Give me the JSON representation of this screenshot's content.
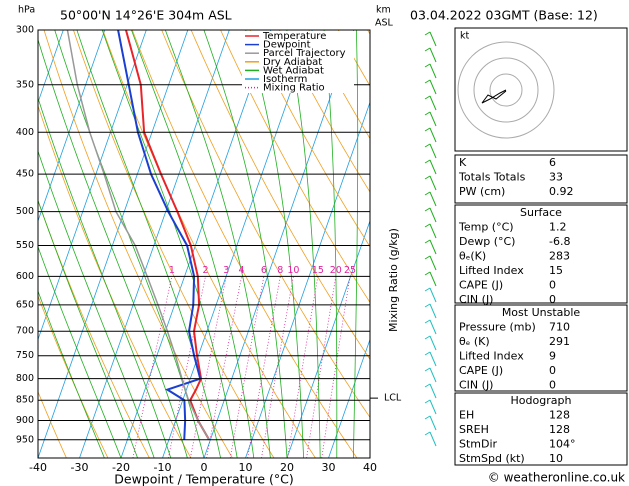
{
  "chart_data": {
    "type": "skewt",
    "title": "50°00'N 14°26'E 304m ASL",
    "date_label": "03.04.2022 03GMT (Base: 12)",
    "y_label": "hPa",
    "y2_label": [
      "km",
      "ASL"
    ],
    "x_label": "Dewpoint / Temperature (°C)",
    "mixing_ratio_axis_label": "Mixing Ratio (g/kg)",
    "log_scale_y": true,
    "xlim": [
      -40,
      40
    ],
    "xticks": [
      -40,
      -30,
      -20,
      -10,
      0,
      10,
      20,
      30,
      40
    ],
    "ylim": [
      1000,
      300
    ],
    "yticks": [
      300,
      350,
      400,
      450,
      500,
      550,
      600,
      650,
      700,
      750,
      800,
      850,
      900,
      950
    ],
    "pressure": [
      950,
      900,
      850,
      825,
      800,
      750,
      700,
      650,
      600,
      550,
      500,
      450,
      400,
      350,
      300
    ],
    "series": [
      {
        "name": "Temperature",
        "color": "#e8242a",
        "values": [
          -0.3,
          -4.6,
          -8.2,
          -7.7,
          -7.4,
          -10.3,
          -13.1,
          -14.1,
          -16.8,
          -21.1,
          -27.2,
          -34.3,
          -41.9,
          -46.7,
          -54.9
        ]
      },
      {
        "name": "Dewpoint",
        "color": "#1b3fd0",
        "values": [
          -6.3,
          -7.7,
          -9.6,
          -14.6,
          -7.6,
          -11,
          -14.3,
          -15.5,
          -17.7,
          -22,
          -29.4,
          -36.7,
          -43.4,
          -49.6,
          -56.8
        ]
      },
      {
        "name": "Parcel Trajectory",
        "color": "#999999",
        "values": [
          -0.3,
          -4.6,
          -8.6,
          -10.3,
          -12,
          -15.5,
          -19.5,
          -24,
          -29,
          -34.5,
          -42,
          -48,
          -55,
          -62,
          -69
        ]
      }
    ],
    "legend_lines": [
      {
        "name": "Dry Adiabat",
        "color": "#f0a020"
      },
      {
        "name": "Wet Adiabat",
        "color": "#20b020"
      },
      {
        "name": "Isotherm",
        "color": "#20a0e0"
      },
      {
        "name": "Mixing Ratio",
        "color": "#e020a0"
      }
    ],
    "mixing_ratios": [
      1,
      2,
      3,
      4,
      6,
      8,
      10,
      15,
      20,
      25
    ],
    "lcl_label": "LCL",
    "lcl_pressure": 845
  },
  "hodograph": {
    "label": "kt"
  },
  "tables": [
    {
      "rows": [
        [
          "K",
          "6"
        ],
        [
          "Totals Totals",
          "33"
        ],
        [
          "PW (cm)",
          "0.92"
        ]
      ]
    },
    {
      "title": "Surface",
      "rows": [
        [
          "Temp (°C)",
          "1.2"
        ],
        [
          "Dewp (°C)",
          "-6.8"
        ],
        [
          "θₑ(K)",
          "283"
        ],
        [
          "Lifted Index",
          "15"
        ],
        [
          "CAPE (J)",
          "0"
        ],
        [
          "CIN (J)",
          "0"
        ]
      ]
    },
    {
      "title": "Most Unstable",
      "rows": [
        [
          "Pressure (mb)",
          "710"
        ],
        [
          "θₑ (K)",
          "291"
        ],
        [
          "Lifted Index",
          "9"
        ],
        [
          "CAPE (J)",
          "0"
        ],
        [
          "CIN (J)",
          "0"
        ]
      ]
    },
    {
      "title": "Hodograph",
      "rows": [
        [
          "EH",
          "128"
        ],
        [
          "SREH",
          "128"
        ],
        [
          "StmDir",
          "104°"
        ],
        [
          "StmSpd (kt)",
          "10"
        ]
      ]
    }
  ],
  "footer": "© weatheronline.co.uk"
}
